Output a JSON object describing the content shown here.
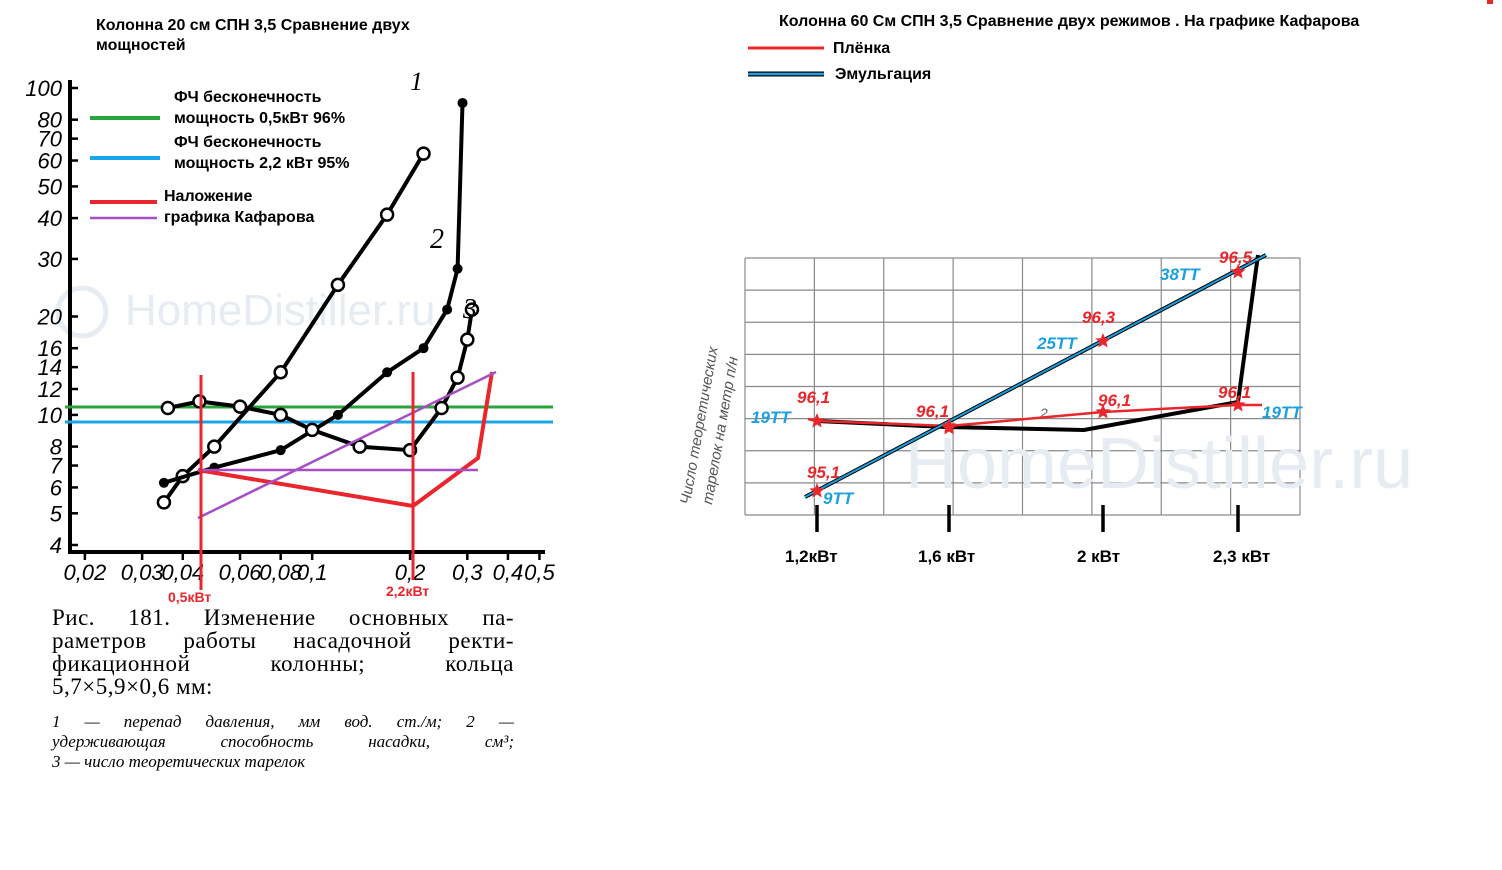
{
  "left_panel": {
    "title_line1": "Колонна 20 см СПН 3,5 Сравнение двух",
    "title_line2": "мощностей",
    "legend": [
      {
        "line1": "ФЧ бесконечность",
        "line2": "мощность 0,5кВт 96%",
        "color": "#2aa33a"
      },
      {
        "line1": "ФЧ бесконечность",
        "line2": "мощность 2,2 кВт 95%",
        "color": "#17a6e8"
      },
      {
        "line1": "Наложение",
        "line2": "графика Кафарова",
        "color": "#e8262b"
      }
    ],
    "kafarov_color": "#a64fc4",
    "watermark": "HomeDistiller.ru",
    "caption_lines": [
      "Рис. 181. Изменение основных па-",
      "раметров работы насадочной ректи-",
      "фикационной колонны; кольца",
      "5,7×5,9×0,6 мм:"
    ],
    "caption_small_lines": [
      "1 — перепад давления, мм вод. ст./м; 2 —",
      "удерживающая способность насадки, см³;",
      "3 — число теоретических тарелок"
    ],
    "power_labels": [
      "0,5кВт",
      "2,2кВт"
    ]
  },
  "right_panel": {
    "title": "Колонна 60 См СПН 3,5  Сравнение двух режимов . На графике Кафарова",
    "legend": [
      {
        "label": "Плёнка",
        "color": "#e8262b"
      },
      {
        "label": "Эмульгация",
        "color": "#1a9fe0"
      }
    ],
    "y_axis_label_line1": "Число теоретических",
    "y_axis_label_line2": "тарелок на метр п/н",
    "watermark": "HomeDistiller.ru",
    "curve_label": "2"
  },
  "chart_data": [
    {
      "type": "line",
      "title": "Колонна 20 см СПН 3,5 Сравнение двух мощностей",
      "x_scale": "log",
      "y_scale": "log",
      "x_ticks": [
        "0,02",
        "0,03",
        "0,04",
        "0,06",
        "0,08",
        "0,1",
        "0,2",
        "0,3",
        "0,4",
        "0,5"
      ],
      "y_ticks": [
        "4",
        "5",
        "6",
        "7",
        "8",
        "10",
        "12",
        "14",
        "16",
        "20",
        "30",
        "40",
        "50",
        "60",
        "70",
        "80",
        "100"
      ],
      "series": [
        {
          "name": "1",
          "x": [
            0.035,
            0.04,
            0.05,
            0.08,
            0.12,
            0.17,
            0.22
          ],
          "y": [
            5.4,
            6.5,
            8.0,
            13.5,
            25,
            41,
            63
          ]
        },
        {
          "name": "2",
          "x": [
            0.035,
            0.05,
            0.08,
            0.12,
            0.17,
            0.22,
            0.26,
            0.28,
            0.29
          ],
          "y": [
            6.2,
            6.9,
            7.8,
            10,
            13.5,
            16,
            21,
            28,
            90
          ]
        },
        {
          "name": "3",
          "x": [
            0.036,
            0.045,
            0.06,
            0.08,
            0.1,
            0.14,
            0.2,
            0.25,
            0.28,
            0.3,
            0.31
          ],
          "y": [
            10.5,
            11,
            10.6,
            10,
            9,
            8,
            7.8,
            10.5,
            13,
            17,
            21
          ]
        }
      ],
      "reference_lines": [
        {
          "name": "ФЧ бесконечность мощность 0,5кВт 96%",
          "y": 11
        },
        {
          "name": "ФЧ бесконечность мощность 2,2 кВт 95%",
          "y": 10
        }
      ],
      "markers": [
        {
          "label": "0,5кВт",
          "x": 0.049
        },
        {
          "label": "2,2кВт",
          "x": 0.23
        }
      ]
    },
    {
      "type": "line",
      "title": "Колонна 60 См СПН 3,5  Сравнение двух режимов . На графике Кафарова",
      "categories": [
        "1,2кВт",
        "1,6 кВт",
        "2 кВт",
        "2,3 кВт"
      ],
      "series": [
        {
          "name": "Плёнка",
          "values": [
            96.1,
            96.1,
            96.1,
            96.1
          ],
          "labels": [
            "96,1",
            "96,1",
            "96,1",
            "96,1"
          ]
        },
        {
          "name": "Эмульгация",
          "values": [
            95.1,
            96.1,
            96.3,
            96.5
          ],
          "labels": [
            "95,1",
            "96,1",
            "96,3",
            "96,5"
          ]
        }
      ],
      "tt_labels": {
        "film": [
          "19ТТ",
          "19ТТ"
        ],
        "emulsion": [
          "9ТТ",
          "25ТТ",
          "38ТТ"
        ]
      }
    }
  ]
}
